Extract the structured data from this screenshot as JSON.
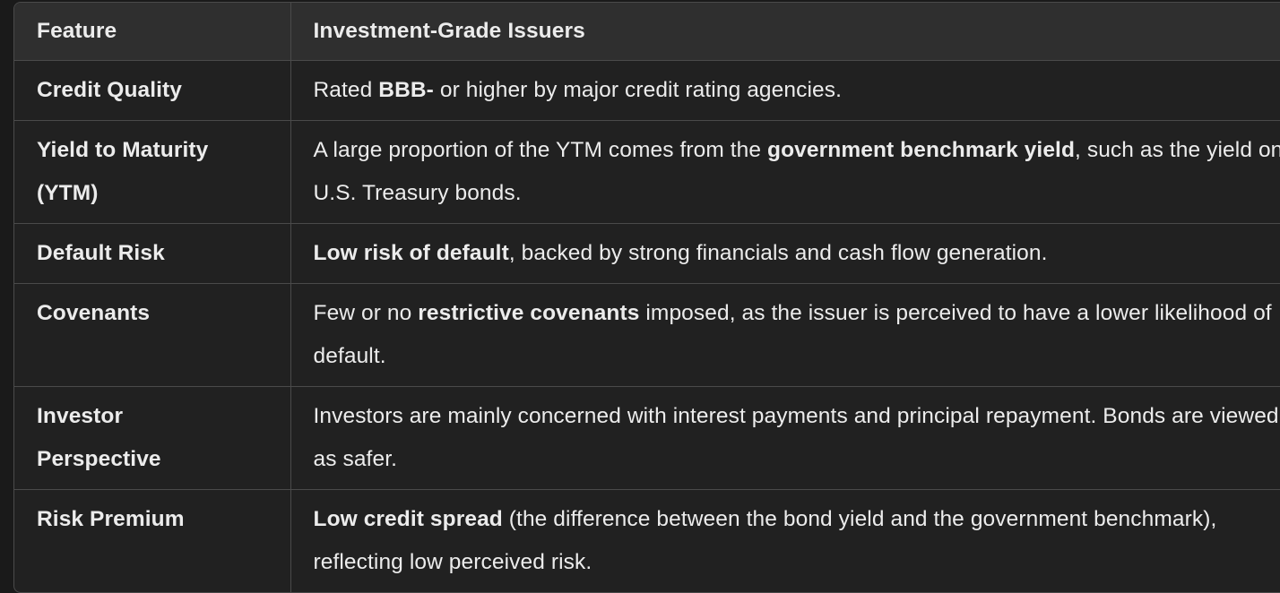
{
  "table": {
    "headers": [
      "Feature",
      "Investment-Grade Issuers"
    ],
    "rows": [
      {
        "feature": "Credit Quality",
        "desc": {
          "pre": "Rated ",
          "bold": "BBB-",
          "post": " or higher by major credit rating agencies."
        }
      },
      {
        "feature_line1": "Yield to Maturity",
        "feature_line2": "(YTM)",
        "desc": {
          "pre": "A large proportion of the YTM comes from the ",
          "bold": "government benchmark yield",
          "post": ", such as the yield on U.S. Treasury bonds."
        }
      },
      {
        "feature": "Default Risk",
        "desc": {
          "pre": "",
          "bold": "Low risk of default",
          "post": ", backed by strong financials and cash flow generation."
        }
      },
      {
        "feature": "Covenants",
        "desc": {
          "pre": "Few or no ",
          "bold": "restrictive covenants",
          "post": " imposed, as the issuer is perceived to have a lower likelihood of default."
        }
      },
      {
        "feature_line1": "Investor",
        "feature_line2": "Perspective",
        "desc": {
          "pre": "Investors are mainly concerned with interest payments and principal repayment. Bonds are viewed as safer."
        }
      },
      {
        "feature": "Risk Premium",
        "desc": {
          "pre": "",
          "bold": "Low credit spread",
          "post": " (the difference between the bond yield and the government benchmark), reflecting low perceived risk."
        }
      }
    ]
  }
}
